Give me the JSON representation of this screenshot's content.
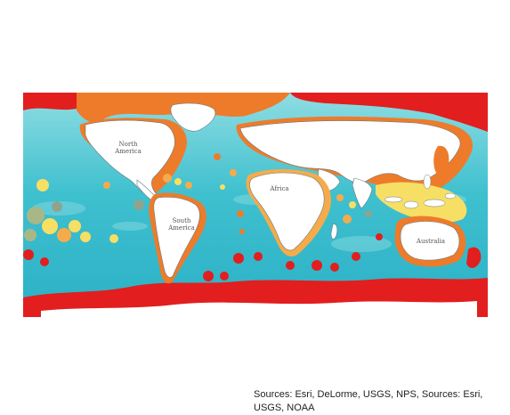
{
  "map": {
    "labels": {
      "north_america": [
        "North",
        "America"
      ],
      "south_america": [
        "South",
        "America"
      ],
      "africa": "Africa",
      "australia": "Australia"
    },
    "colors": {
      "ocean_light": "#8fdde2",
      "ocean_mid": "#3fc0cf",
      "ocean_deep": "#22a9c1",
      "land": "#ffffff",
      "coastline": "#6b7b7e",
      "zone_red": "#e21e1e",
      "zone_orange": "#ee7b2a",
      "zone_light_orange": "#f6ab4a",
      "zone_yellow": "#f6df64",
      "zone_sage": "#a7b886",
      "zone_grey_green": "#8ea48f"
    },
    "legend": "none"
  },
  "attribution": "Sources: Esri, DeLorme, USGS, NPS, Sources: Esri, USGS, NOAA"
}
